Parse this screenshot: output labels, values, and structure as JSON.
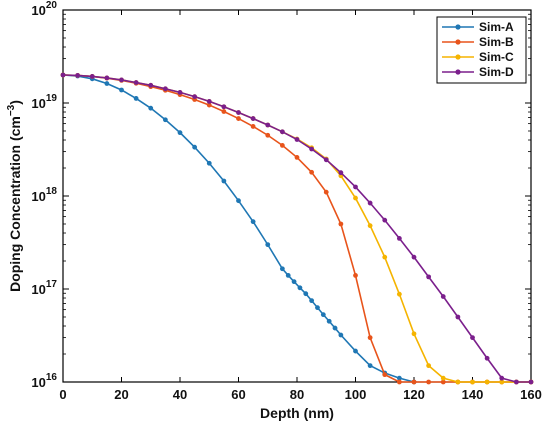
{
  "chart_data": {
    "type": "line",
    "xlabel": "Depth (nm)",
    "ylabel": "Doping Concentration (cm",
    "ylabel_sup": "−3",
    "ylabel_close": ")",
    "xlim": [
      0,
      160
    ],
    "ylim": [
      1e+16,
      1e+20
    ],
    "yscale": "log",
    "grid": false,
    "legend_position": "top-right",
    "x_ticks": [
      "0",
      "20",
      "40",
      "60",
      "80",
      "100",
      "120",
      "140",
      "160"
    ],
    "y_ticks": [
      {
        "base": "10",
        "exp": "16"
      },
      {
        "base": "10",
        "exp": "17"
      },
      {
        "base": "10",
        "exp": "18"
      },
      {
        "base": "10",
        "exp": "19"
      },
      {
        "base": "10",
        "exp": "20"
      }
    ],
    "series": [
      {
        "name": "Sim-A",
        "color": "#1f77b4",
        "x": [
          0,
          5,
          10,
          15,
          20,
          25,
          30,
          35,
          40,
          45,
          50,
          55,
          60,
          65,
          70,
          75,
          77,
          79,
          81,
          83,
          85,
          87,
          89,
          91,
          93,
          95,
          100,
          105,
          110,
          115,
          120
        ],
        "y": [
          2e+19,
          1.95e+19,
          1.82e+19,
          1.62e+19,
          1.38e+19,
          1.12e+19,
          8.8e+18,
          6.6e+18,
          4.8e+18,
          3.35e+18,
          2.25e+18,
          1.45e+18,
          8.9e+17,
          5.3e+17,
          3e+17,
          1.65e+17,
          1.4e+17,
          1.2e+17,
          1.03e+17,
          8.9e+16,
          7.5e+16,
          6.3e+16,
          5.3e+16,
          4.5e+16,
          3.8e+16,
          3.2e+16,
          2.15e+16,
          1.5e+16,
          1.25e+16,
          1.1e+16,
          1e+16
        ]
      },
      {
        "name": "Sim-B",
        "color": "#e8541b",
        "x": [
          0,
          5,
          10,
          15,
          20,
          25,
          30,
          35,
          40,
          45,
          50,
          55,
          60,
          65,
          70,
          75,
          80,
          85,
          90,
          95,
          100,
          105,
          110,
          115,
          120,
          125,
          130,
          135,
          140,
          145,
          150,
          155,
          160
        ],
        "y": [
          2e+19,
          1.98e+19,
          1.93e+19,
          1.85e+19,
          1.75e+19,
          1.63e+19,
          1.5e+19,
          1.37e+19,
          1.23e+19,
          1.09e+19,
          9.5e+18,
          8.1e+18,
          6.8e+18,
          5.6e+18,
          4.5e+18,
          3.5e+18,
          2.6e+18,
          1.8e+18,
          1.1e+18,
          5e+17,
          1.4e+17,
          3e+16,
          1.2e+16,
          1e+16,
          1e+16,
          1e+16,
          1e+16,
          1e+16,
          1e+16,
          1e+16,
          1e+16,
          1e+16,
          1e+16
        ]
      },
      {
        "name": "Sim-C",
        "color": "#f5b400",
        "x": [
          0,
          5,
          10,
          15,
          20,
          25,
          30,
          35,
          40,
          45,
          50,
          55,
          60,
          65,
          70,
          75,
          80,
          85,
          90,
          95,
          100,
          105,
          110,
          115,
          120,
          125,
          130,
          135,
          140,
          145,
          150,
          155,
          160
        ],
        "y": [
          2e+19,
          1.98e+19,
          1.93e+19,
          1.86e+19,
          1.77e+19,
          1.66e+19,
          1.55e+19,
          1.42e+19,
          1.3e+19,
          1.17e+19,
          1.04e+19,
          9.1e+18,
          7.9e+18,
          6.8e+18,
          5.8e+18,
          4.9e+18,
          4.1e+18,
          3.3e+18,
          2.5e+18,
          1.65e+18,
          9.5e+17,
          4.8e+17,
          2.2e+17,
          8.8e+16,
          3.3e+16,
          1.5e+16,
          1.1e+16,
          1e+16,
          1e+16,
          1e+16,
          1e+16,
          1e+16,
          1e+16
        ]
      },
      {
        "name": "Sim-D",
        "color": "#7b1f8c",
        "x": [
          0,
          5,
          10,
          15,
          20,
          25,
          30,
          35,
          40,
          45,
          50,
          55,
          60,
          65,
          70,
          75,
          80,
          85,
          90,
          95,
          100,
          105,
          110,
          115,
          120,
          125,
          130,
          135,
          140,
          145,
          150,
          155,
          160
        ],
        "y": [
          2e+19,
          1.98e+19,
          1.93e+19,
          1.86e+19,
          1.77e+19,
          1.66e+19,
          1.55e+19,
          1.42e+19,
          1.3e+19,
          1.17e+19,
          1.04e+19,
          9.1e+18,
          7.9e+18,
          6.8e+18,
          5.8e+18,
          4.9e+18,
          4.05e+18,
          3.2e+18,
          2.45e+18,
          1.78e+18,
          1.25e+18,
          8.4e+17,
          5.5e+17,
          3.5e+17,
          2.2e+17,
          1.35e+17,
          8.3e+16,
          5e+16,
          3e+16,
          1.8e+16,
          1.1e+16,
          1e+16,
          1e+16
        ]
      }
    ]
  }
}
